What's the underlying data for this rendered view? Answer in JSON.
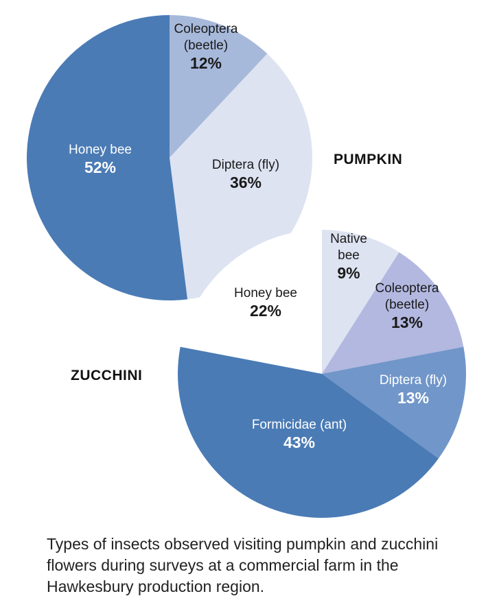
{
  "chart_data": [
    {
      "type": "pie",
      "title": "PUMPKIN",
      "slices": [
        {
          "label": [
            "Coleoptera",
            "(beetle)"
          ],
          "value": 12,
          "value_label": "12%",
          "color": "#a7b9db",
          "text_color": "#1a1a1a"
        },
        {
          "label": [
            "Diptera (fly)"
          ],
          "value": 36,
          "value_label": "36%",
          "color": "#dde3f1",
          "text_color": "#1a1a1a"
        },
        {
          "label": [
            "Honey bee"
          ],
          "value": 52,
          "value_label": "52%",
          "color": "#4a7bb5",
          "text_color": "#ffffff"
        }
      ]
    },
    {
      "type": "pie",
      "title": "ZUCCHINI",
      "slices": [
        {
          "label": [
            "Native",
            "bee"
          ],
          "value": 9,
          "value_label": "9%",
          "color": "#dde3f1",
          "text_color": "#1a1a1a"
        },
        {
          "label": [
            "Coleoptera",
            "(beetle)"
          ],
          "value": 13,
          "value_label": "13%",
          "color": "#b3b8e0",
          "text_color": "#1a1a1a"
        },
        {
          "label": [
            "Diptera (fly)"
          ],
          "value": 13,
          "value_label": "13%",
          "color": "#7196c9",
          "text_color": "#ffffff"
        },
        {
          "label": [
            "Formicidae (ant)"
          ],
          "value": 43,
          "value_label": "43%",
          "color": "#4a7bb5",
          "text_color": "#ffffff"
        },
        {
          "label": [
            "Honey bee"
          ],
          "value": 22,
          "value_label": "22%",
          "color": "#ffffff",
          "text_color": "#1a1a1a"
        }
      ]
    }
  ],
  "caption": "Types of insects observed visiting pumpkin and zucchini flowers during surveys at a commercial farm in the Hawkesbury production region."
}
